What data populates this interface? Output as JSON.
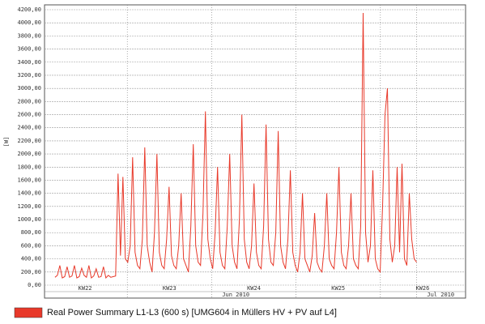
{
  "chart_data": {
    "type": "line",
    "y_label": "[W]",
    "weeks": [
      "KW22",
      "KW23",
      "KW24",
      "KW25",
      "KW26"
    ],
    "months": [
      "Jun 2010",
      "Jul 2010"
    ],
    "ylim": [
      0,
      4200
    ],
    "yticks": [
      {
        "value": 0,
        "label": "0,00"
      },
      {
        "value": 200,
        "label": "200,00"
      },
      {
        "value": 400,
        "label": "400,00"
      },
      {
        "value": 600,
        "label": "600,00"
      },
      {
        "value": 800,
        "label": "800,00"
      },
      {
        "value": 1000,
        "label": "1000,00"
      },
      {
        "value": 1200,
        "label": "1200,00"
      },
      {
        "value": 1400,
        "label": "1400,00"
      },
      {
        "value": 1600,
        "label": "1600,00"
      },
      {
        "value": 1800,
        "label": "1800,00"
      },
      {
        "value": 2000,
        "label": "2000,00"
      },
      {
        "value": 2200,
        "label": "2200,00"
      },
      {
        "value": 2400,
        "label": "2400,00"
      },
      {
        "value": 2600,
        "label": "2600,00"
      },
      {
        "value": 2800,
        "label": "2800,00"
      },
      {
        "value": 3000,
        "label": "3000,00"
      },
      {
        "value": 3200,
        "label": "3200,00"
      },
      {
        "value": 3400,
        "label": "3400,00"
      },
      {
        "value": 3600,
        "label": "3600,00"
      },
      {
        "value": 3800,
        "label": "3800,00"
      },
      {
        "value": 4000,
        "label": "4000,00"
      },
      {
        "value": 4200,
        "label": "4200,00"
      }
    ],
    "grid": true,
    "series": [
      {
        "name": "Real Power Summary L1-L3 (600 s) [UMG604 in Müllers HV + PV auf L4]",
        "color": "#e8392a",
        "values": [
          120,
          150,
          300,
          110,
          130,
          280,
          120,
          140,
          300,
          110,
          130,
          260,
          150,
          120,
          300,
          110,
          140,
          250,
          120,
          130,
          280,
          110,
          150,
          120,
          130,
          140,
          1700,
          450,
          1650,
          400,
          350,
          600,
          1950,
          500,
          300,
          250,
          700,
          2100,
          600,
          350,
          200,
          800,
          2000,
          500,
          300,
          250,
          700,
          1500,
          450,
          300,
          250,
          600,
          1400,
          400,
          300,
          200,
          900,
          2150,
          600,
          350,
          300,
          1100,
          2650,
          700,
          400,
          250,
          800,
          1800,
          500,
          300,
          250,
          900,
          2000,
          600,
          350,
          250,
          1000,
          2600,
          700,
          350,
          250,
          600,
          1550,
          500,
          300,
          250,
          900,
          2450,
          700,
          350,
          300,
          800,
          2350,
          600,
          350,
          250,
          700,
          1750,
          500,
          300,
          200,
          500,
          1400,
          400,
          300,
          200,
          450,
          1100,
          350,
          250,
          200,
          600,
          1400,
          400,
          300,
          250,
          800,
          1800,
          500,
          300,
          250,
          600,
          1400,
          400,
          300,
          250,
          900,
          4150,
          800,
          350,
          600,
          1750,
          400,
          250,
          200,
          1200,
          2600,
          3000,
          700,
          350,
          600,
          1800,
          500,
          1850,
          400,
          300,
          1400,
          700,
          400,
          350
        ]
      }
    ]
  }
}
